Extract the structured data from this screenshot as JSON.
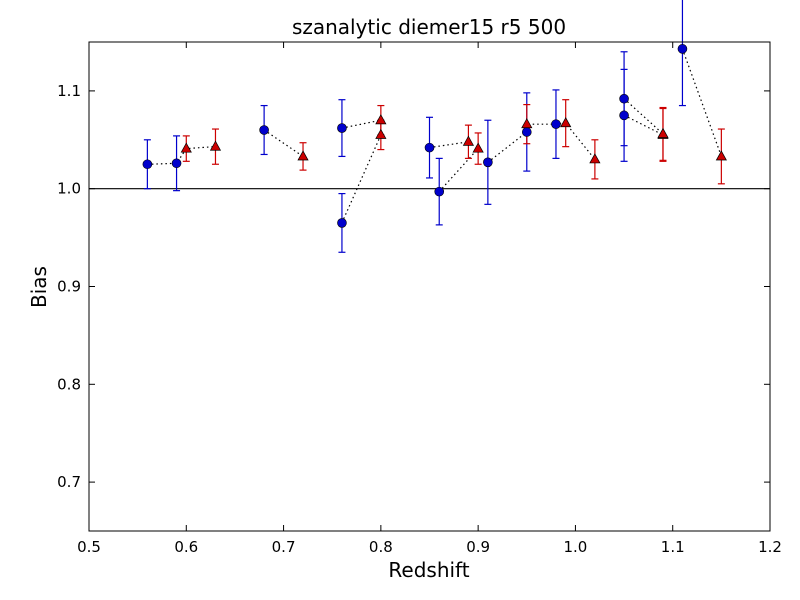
{
  "chart_data": {
    "type": "scatter",
    "title": "szanalytic diemer15 r5 500",
    "xlabel": "Redshift",
    "ylabel": "Bias",
    "xlim": [
      0.5,
      1.2
    ],
    "ylim": [
      0.65,
      1.15
    ],
    "xticks": [
      0.5,
      0.6,
      0.7,
      0.8,
      0.9,
      1.0,
      1.1,
      1.2
    ],
    "xtick_labels": [
      "0.5",
      "0.6",
      "0.7",
      "0.8",
      "0.9",
      "1.0",
      "1.1",
      "1.2"
    ],
    "yticks": [
      0.7,
      0.8,
      0.9,
      1.0,
      1.1
    ],
    "ytick_labels": [
      "0.7",
      "0.8",
      "0.9",
      "1.0",
      "1.1"
    ],
    "reference_line": 1.0,
    "grid": false,
    "legend": "none",
    "connector_style": "dotted black",
    "series": [
      {
        "marker": "circle",
        "color": "#0000cc",
        "x": [
          0.56,
          0.59,
          0.68,
          0.76,
          0.76,
          0.85,
          0.86,
          0.91,
          0.95,
          0.98,
          1.05,
          1.05,
          1.11
        ],
        "y": [
          1.025,
          1.026,
          1.06,
          0.965,
          1.062,
          1.042,
          0.997,
          1.027,
          1.058,
          1.066,
          1.075,
          1.092,
          1.143
        ],
        "err": [
          0.025,
          0.028,
          0.025,
          0.03,
          0.029,
          0.031,
          0.034,
          0.043,
          0.04,
          0.035,
          0.047,
          0.048,
          0.058
        ]
      },
      {
        "marker": "triangle",
        "color": "#cc0000",
        "x": [
          0.6,
          0.63,
          0.72,
          0.8,
          0.8,
          0.89,
          0.9,
          0.95,
          0.99,
          1.02,
          1.09,
          1.09,
          1.15
        ],
        "y": [
          1.041,
          1.043,
          1.033,
          1.055,
          1.07,
          1.048,
          1.041,
          1.066,
          1.067,
          1.03,
          1.055,
          1.056,
          1.033
        ],
        "err": [
          0.013,
          0.018,
          0.014,
          0.015,
          0.015,
          0.017,
          0.016,
          0.02,
          0.024,
          0.02,
          0.027,
          0.027,
          0.028
        ]
      }
    ],
    "connections": [
      [
        [
          0.56,
          1.025
        ],
        [
          0.59,
          1.026
        ],
        [
          0.6,
          1.041
        ],
        [
          0.63,
          1.043
        ]
      ],
      [
        [
          0.68,
          1.06
        ],
        [
          0.72,
          1.033
        ]
      ],
      [
        [
          0.76,
          1.062
        ],
        [
          0.8,
          1.07
        ]
      ],
      [
        [
          0.76,
          0.965
        ],
        [
          0.8,
          1.055
        ]
      ],
      [
        [
          0.85,
          1.042
        ],
        [
          0.89,
          1.048
        ]
      ],
      [
        [
          0.86,
          0.997
        ],
        [
          0.9,
          1.041
        ]
      ],
      [
        [
          0.91,
          1.027
        ],
        [
          0.95,
          1.058
        ],
        [
          0.95,
          1.066
        ],
        [
          0.98,
          1.066
        ],
        [
          0.99,
          1.067
        ],
        [
          1.02,
          1.03
        ]
      ],
      [
        [
          1.05,
          1.092
        ],
        [
          1.09,
          1.056
        ]
      ],
      [
        [
          1.05,
          1.075
        ],
        [
          1.09,
          1.055
        ]
      ],
      [
        [
          1.11,
          1.143
        ],
        [
          1.15,
          1.033
        ]
      ]
    ]
  }
}
